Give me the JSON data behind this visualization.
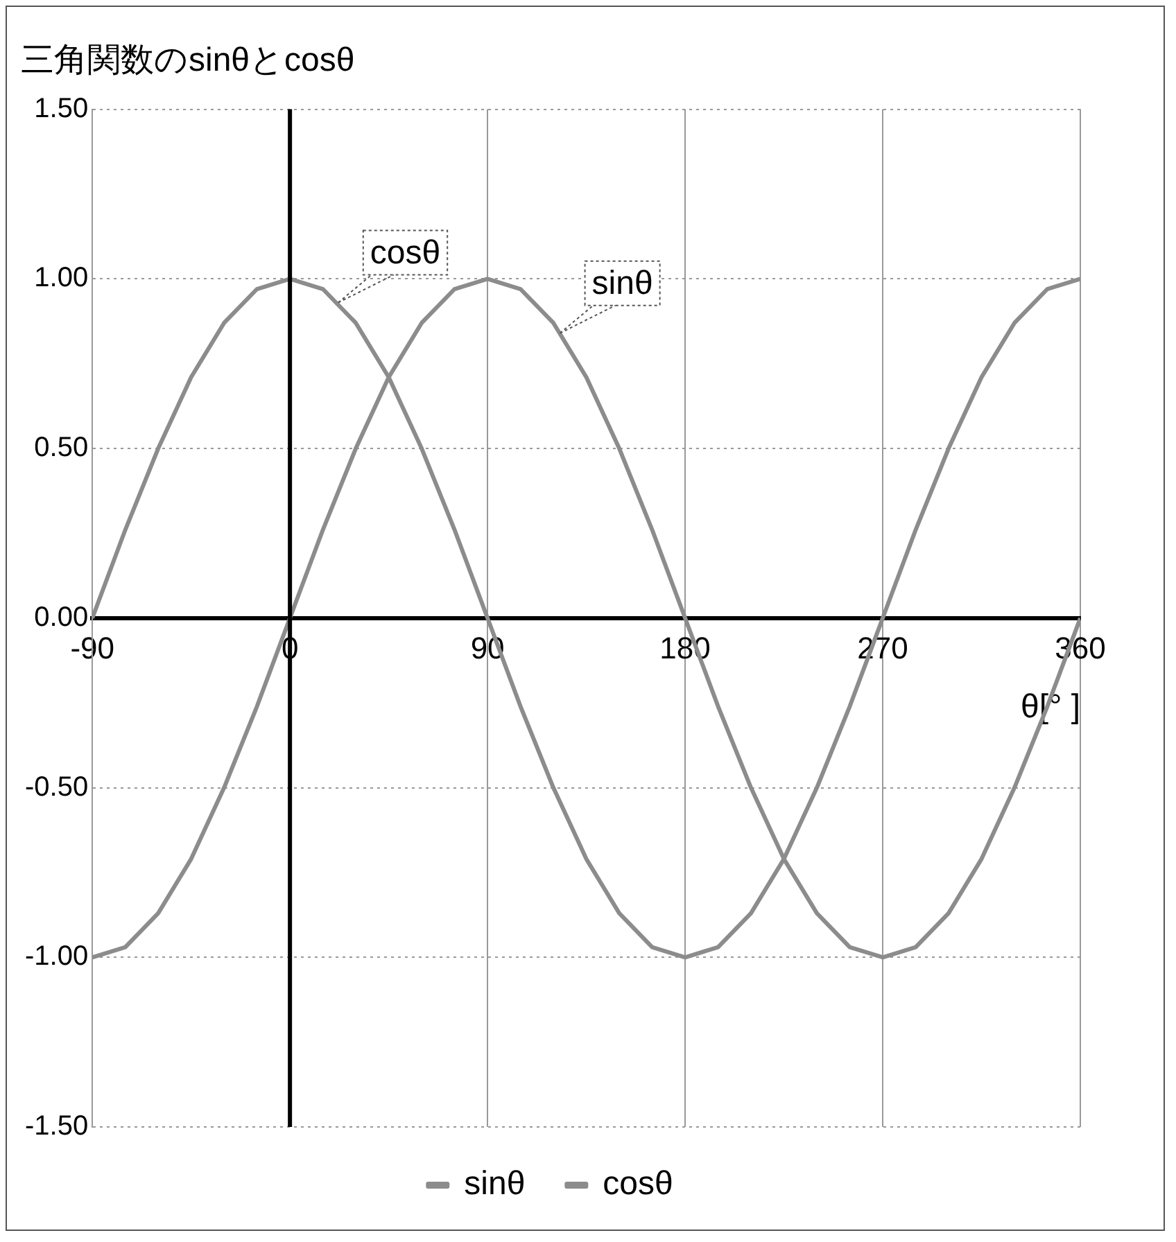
{
  "chart_data": {
    "type": "line",
    "title": "三角関数のsinθとcosθ",
    "xlabel": "θ[° ]",
    "x": [
      -90,
      -75,
      -60,
      -45,
      -30,
      -15,
      0,
      15,
      30,
      45,
      60,
      75,
      90,
      105,
      120,
      135,
      150,
      165,
      180,
      195,
      210,
      225,
      240,
      255,
      270,
      285,
      300,
      315,
      330,
      345,
      360
    ],
    "series": [
      {
        "name": "sinθ",
        "color": "#8c8c8c",
        "values": [
          -1,
          -0.97,
          -0.87,
          -0.71,
          -0.5,
          -0.26,
          0,
          0.26,
          0.5,
          0.71,
          0.87,
          0.97,
          1,
          0.97,
          0.87,
          0.71,
          0.5,
          0.26,
          0,
          -0.26,
          -0.5,
          -0.71,
          -0.87,
          -0.97,
          -1,
          -0.97,
          -0.87,
          -0.71,
          -0.5,
          -0.26,
          0
        ]
      },
      {
        "name": "cosθ",
        "color": "#8c8c8c",
        "values": [
          0,
          0.26,
          0.5,
          0.71,
          0.87,
          0.97,
          1,
          0.97,
          0.87,
          0.71,
          0.5,
          0.26,
          0,
          -0.26,
          -0.5,
          -0.71,
          -0.87,
          -0.97,
          -1,
          -0.97,
          -0.87,
          -0.71,
          -0.5,
          -0.26,
          0,
          0.26,
          0.5,
          0.71,
          0.87,
          0.97,
          1
        ]
      }
    ],
    "xlim": [
      -90,
      360
    ],
    "xticks": [
      -90,
      0,
      90,
      180,
      270,
      360
    ],
    "ylim": [
      -1.5,
      1.5
    ],
    "yticks": [
      {
        "value": -1.5,
        "label": "-1.50"
      },
      {
        "value": -1,
        "label": "-1.00"
      },
      {
        "value": -0.5,
        "label": "-0.50"
      },
      {
        "value": 0,
        "label": "0.00"
      },
      {
        "value": 0.5,
        "label": "0.50"
      },
      {
        "value": 1,
        "label": "1.00"
      },
      {
        "value": 1.5,
        "label": "1.50"
      }
    ],
    "annotations": [
      {
        "text": "cosθ",
        "x": 22,
        "y": 0.93
      },
      {
        "text": "sinθ",
        "x": 123,
        "y": 0.84
      }
    ],
    "grid": true,
    "legend": "bottom",
    "marker": "none",
    "line_style": "solid"
  }
}
